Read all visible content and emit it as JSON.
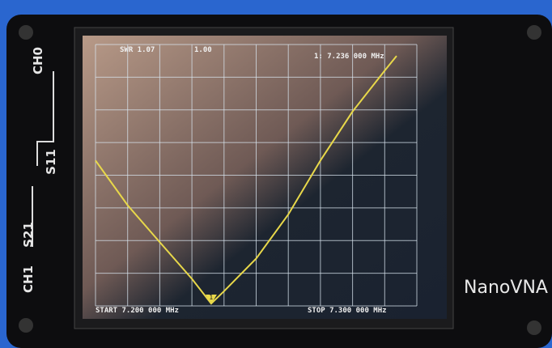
{
  "device": {
    "brand": "NanoVNA",
    "ports": [
      "CH0",
      "S11",
      "S21",
      "CH1"
    ]
  },
  "chart_data": {
    "type": "line",
    "trace_label": "SWR 1.07",
    "scale_label": "1.00",
    "marker_label": "1: 7.236 000 MHz",
    "marker_number": "1",
    "start_label": "START 7.200 000 MHz",
    "stop_label": "STOP 7.300 000 MHz",
    "x": [
      7.2,
      7.21,
      7.22,
      7.23,
      7.236,
      7.24,
      7.25,
      7.26,
      7.27,
      7.28,
      7.29,
      7.2937
    ],
    "series": [
      {
        "name": "SWR",
        "color": "#e8d84a",
        "values": [
          5.45,
          4.08,
          2.95,
          1.83,
          1.07,
          1.45,
          2.45,
          3.8,
          5.45,
          6.95,
          8.2,
          8.65
        ]
      }
    ],
    "marker_x": 7.236,
    "xlim": [
      7.2,
      7.3
    ],
    "ylim": [
      1,
      9
    ],
    "xticks": [
      7.2,
      7.21,
      7.22,
      7.23,
      7.24,
      7.25,
      7.26,
      7.27,
      7.28,
      7.29,
      7.3
    ],
    "yticks": [
      1,
      2,
      3,
      4,
      5,
      6,
      7,
      8,
      9
    ],
    "grid": true
  }
}
